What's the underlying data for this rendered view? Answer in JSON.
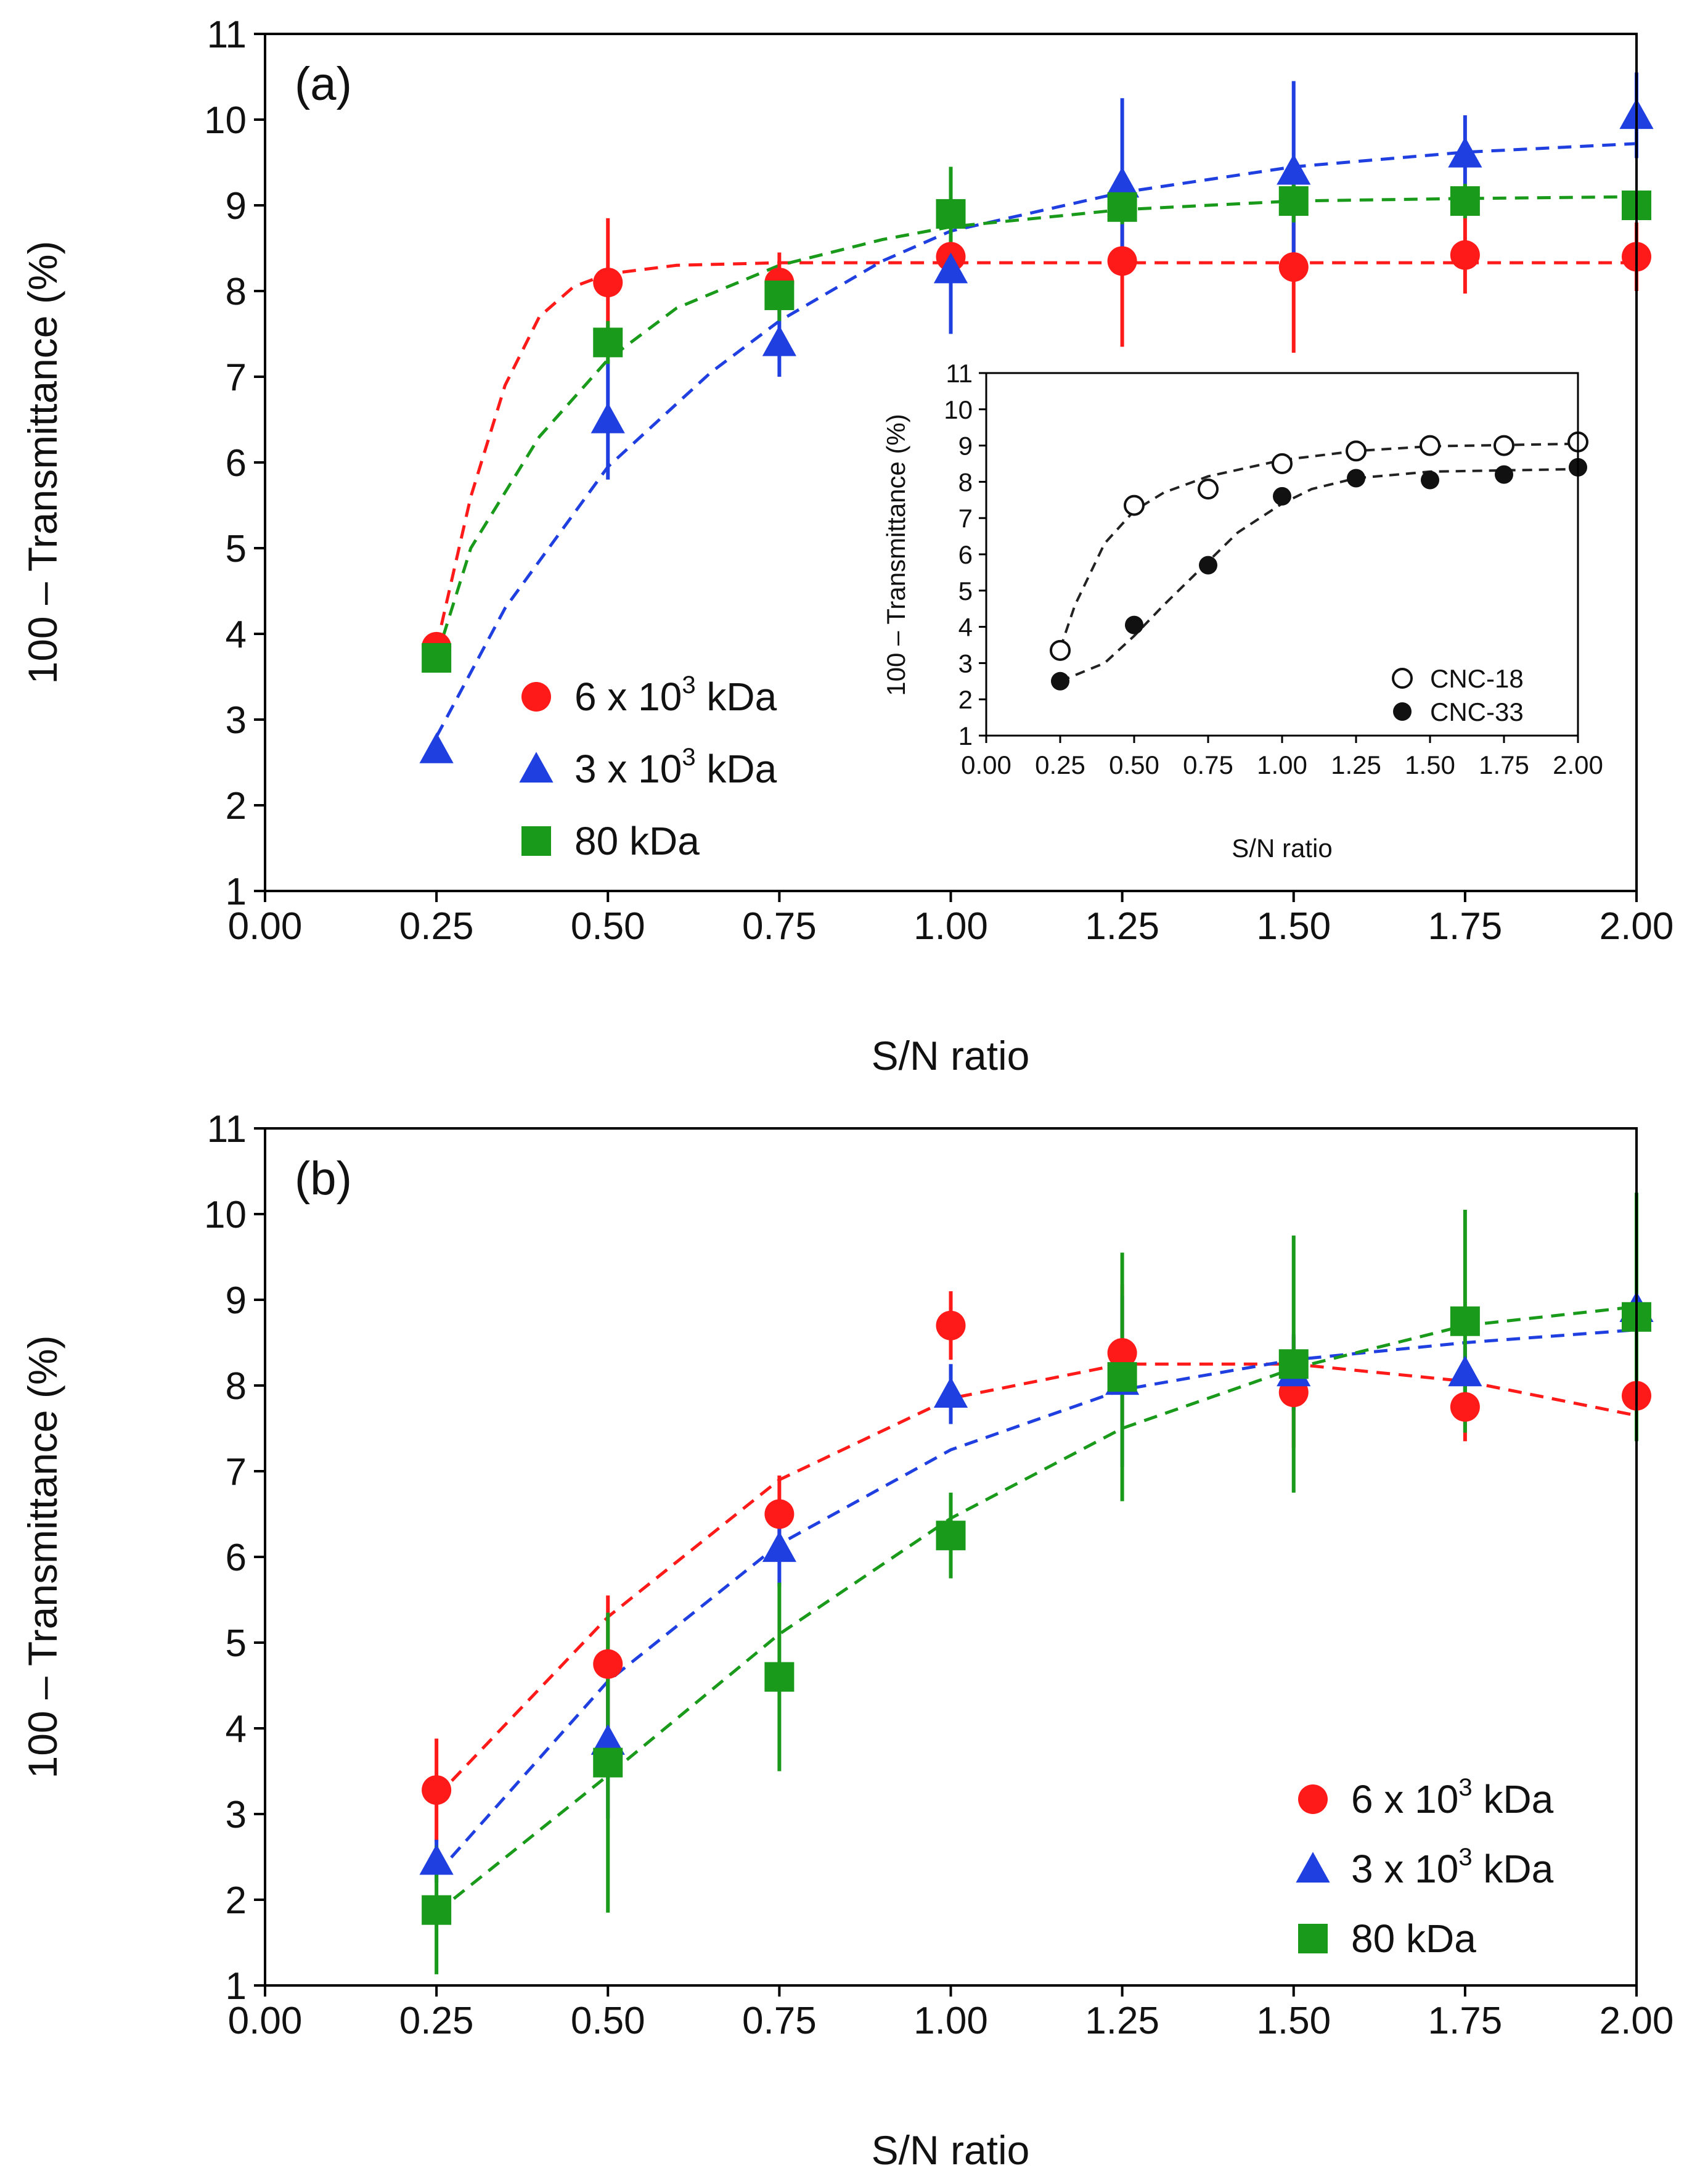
{
  "chart_data": [
    {
      "type": "scatter",
      "panel_label": "(a)",
      "xlabel": "S/N ratio",
      "ylabel": "100 – Transmittance (%)",
      "xlim": [
        0,
        2
      ],
      "ylim": [
        1,
        11
      ],
      "xticks": [
        "0.00",
        "0.25",
        "0.50",
        "0.75",
        "1.00",
        "1.25",
        "1.50",
        "1.75",
        "2.00"
      ],
      "yticks": [
        "1",
        "2",
        "3",
        "4",
        "5",
        "6",
        "7",
        "8",
        "9",
        "10",
        "11"
      ],
      "legend_position": "lower-left",
      "series": [
        {
          "name": "6 x 10^3 kDa",
          "label_base": "6 x 10",
          "label_sup": "3",
          "label_unit": " kDa",
          "marker": "circle",
          "color": "#ff1a1a",
          "x": [
            0.25,
            0.5,
            0.75,
            1.0,
            1.25,
            1.5,
            1.75,
            2.0
          ],
          "y": [
            3.85,
            8.1,
            8.1,
            8.4,
            8.35,
            8.28,
            8.42,
            8.4
          ],
          "err": [
            0.15,
            0.75,
            0.35,
            0.5,
            1.0,
            1.0,
            0.45,
            0.4
          ],
          "fit": [
            [
              0.25,
              3.85
            ],
            [
              0.3,
              5.6
            ],
            [
              0.35,
              6.9
            ],
            [
              0.4,
              7.7
            ],
            [
              0.45,
              8.05
            ],
            [
              0.5,
              8.2
            ],
            [
              0.6,
              8.3
            ],
            [
              0.75,
              8.33
            ],
            [
              1.0,
              8.33
            ],
            [
              1.5,
              8.33
            ],
            [
              2.0,
              8.33
            ]
          ]
        },
        {
          "name": "3 x 10^3 kDa",
          "label_base": "3 x 10",
          "label_sup": "3",
          "label_unit": " kDa",
          "marker": "triangle",
          "color": "#1f3fe0",
          "x": [
            0.25,
            0.5,
            0.75,
            1.0,
            1.25,
            1.5,
            1.75,
            2.0
          ],
          "y": [
            2.65,
            6.5,
            7.4,
            8.25,
            9.25,
            9.4,
            9.6,
            10.05
          ],
          "err": [
            0.1,
            0.7,
            0.4,
            0.75,
            1.0,
            1.05,
            0.45,
            0.5
          ],
          "fit": [
            [
              0.25,
              2.8
            ],
            [
              0.35,
              4.3
            ],
            [
              0.5,
              5.95
            ],
            [
              0.65,
              7.05
            ],
            [
              0.75,
              7.65
            ],
            [
              0.9,
              8.35
            ],
            [
              1.0,
              8.7
            ],
            [
              1.25,
              9.15
            ],
            [
              1.5,
              9.45
            ],
            [
              1.75,
              9.62
            ],
            [
              2.0,
              9.72
            ]
          ]
        },
        {
          "name": "80 kDa",
          "label_base": "80 kDa",
          "label_sup": "",
          "label_unit": "",
          "marker": "square",
          "color": "#1a9a1a",
          "x": [
            0.25,
            0.5,
            0.75,
            1.0,
            1.25,
            1.5,
            1.75,
            2.0
          ],
          "y": [
            3.72,
            7.4,
            7.95,
            8.9,
            8.98,
            9.05,
            9.05,
            9.0
          ],
          "err": [
            0.1,
            0.25,
            0.3,
            0.55,
            0.2,
            0.25,
            0.2,
            0.15
          ],
          "fit": [
            [
              0.25,
              3.72
            ],
            [
              0.3,
              5.0
            ],
            [
              0.4,
              6.3
            ],
            [
              0.5,
              7.2
            ],
            [
              0.6,
              7.8
            ],
            [
              0.75,
              8.3
            ],
            [
              0.9,
              8.6
            ],
            [
              1.0,
              8.75
            ],
            [
              1.25,
              8.95
            ],
            [
              1.5,
              9.05
            ],
            [
              1.75,
              9.08
            ],
            [
              2.0,
              9.1
            ]
          ]
        }
      ],
      "inset": {
        "xlabel": "S/N ratio",
        "ylabel": "100 – Transmittance (%)",
        "xlim": [
          0,
          2
        ],
        "ylim": [
          1,
          11
        ],
        "xticks": [
          "0.00",
          "0.25",
          "0.50",
          "0.75",
          "1.00",
          "1.25",
          "1.50",
          "1.75",
          "2.00"
        ],
        "yticks": [
          "1",
          "2",
          "3",
          "4",
          "5",
          "6",
          "7",
          "8",
          "9",
          "10",
          "11"
        ],
        "legend_position": "lower-right",
        "series": [
          {
            "name": "CNC-18",
            "marker": "open-circle",
            "x": [
              0.25,
              0.5,
              0.75,
              1.0,
              1.25,
              1.5,
              1.75,
              2.0
            ],
            "y": [
              3.35,
              7.35,
              7.8,
              8.5,
              8.85,
              9.0,
              9.0,
              9.1
            ],
            "fit": [
              [
                0.25,
                3.4
              ],
              [
                0.3,
                4.6
              ],
              [
                0.4,
                6.3
              ],
              [
                0.5,
                7.2
              ],
              [
                0.6,
                7.7
              ],
              [
                0.75,
                8.15
              ],
              [
                1.0,
                8.6
              ],
              [
                1.25,
                8.85
              ],
              [
                1.5,
                8.98
              ],
              [
                2.0,
                9.05
              ]
            ]
          },
          {
            "name": "CNC-33",
            "marker": "filled-circle",
            "x": [
              0.25,
              0.5,
              0.75,
              1.0,
              1.25,
              1.5,
              1.75,
              2.0
            ],
            "y": [
              2.5,
              4.05,
              5.7,
              7.6,
              8.1,
              8.05,
              8.2,
              8.4
            ],
            "fit": [
              [
                0.25,
                2.5
              ],
              [
                0.4,
                3.0
              ],
              [
                0.5,
                3.75
              ],
              [
                0.6,
                4.6
              ],
              [
                0.75,
                5.8
              ],
              [
                0.85,
                6.6
              ],
              [
                1.0,
                7.4
              ],
              [
                1.1,
                7.8
              ],
              [
                1.25,
                8.1
              ],
              [
                1.5,
                8.28
              ],
              [
                2.0,
                8.35
              ]
            ]
          }
        ]
      }
    },
    {
      "type": "scatter",
      "panel_label": "(b)",
      "xlabel": "S/N ratio",
      "ylabel": "100 – Transmittance (%)",
      "xlim": [
        0,
        2
      ],
      "ylim": [
        1,
        11
      ],
      "xticks": [
        "0.00",
        "0.25",
        "0.50",
        "0.75",
        "1.00",
        "1.25",
        "1.50",
        "1.75",
        "2.00"
      ],
      "yticks": [
        "1",
        "2",
        "3",
        "4",
        "5",
        "6",
        "7",
        "8",
        "9",
        "10",
        "11"
      ],
      "legend_position": "lower-right",
      "series": [
        {
          "name": "6 x 10^3 kDa",
          "label_base": "6 x 10",
          "label_sup": "3",
          "label_unit": " kDa",
          "marker": "circle",
          "color": "#ff1a1a",
          "x": [
            0.25,
            0.5,
            0.75,
            1.0,
            1.25,
            1.5,
            1.75,
            2.0
          ],
          "y": [
            3.28,
            4.75,
            6.5,
            8.7,
            8.38,
            7.92,
            7.75,
            7.88
          ],
          "err": [
            0.6,
            0.8,
            0.45,
            0.4,
            0.8,
            0.65,
            0.4,
            0.4
          ],
          "fit": [
            [
              0.25,
              3.2
            ],
            [
              0.5,
              5.3
            ],
            [
              0.75,
              6.9
            ],
            [
              1.0,
              7.85
            ],
            [
              1.25,
              8.25
            ],
            [
              1.5,
              8.25
            ],
            [
              1.75,
              8.05
            ],
            [
              2.0,
              7.65
            ]
          ]
        },
        {
          "name": "3 x 10^3 kDa",
          "label_base": "3 x 10",
          "label_sup": "3",
          "label_unit": " kDa",
          "marker": "triangle",
          "color": "#1f3fe0",
          "x": [
            0.25,
            0.5,
            0.75,
            1.0,
            1.25,
            1.5,
            1.75,
            2.0
          ],
          "y": [
            2.45,
            3.85,
            6.1,
            7.9,
            8.05,
            8.15,
            8.15,
            8.9
          ],
          "err": [
            0.25,
            0.9,
            0.45,
            0.35,
            1.0,
            0.45,
            0.3,
            0.2
          ],
          "fit": [
            [
              0.25,
              2.3
            ],
            [
              0.5,
              4.55
            ],
            [
              0.75,
              6.15
            ],
            [
              1.0,
              7.25
            ],
            [
              1.25,
              7.95
            ],
            [
              1.5,
              8.3
            ],
            [
              1.75,
              8.5
            ],
            [
              2.0,
              8.65
            ]
          ]
        },
        {
          "name": "80 kDa",
          "label_base": "80 kDa",
          "label_sup": "",
          "label_unit": "",
          "marker": "square",
          "color": "#1a9a1a",
          "x": [
            0.25,
            0.5,
            0.75,
            1.0,
            1.25,
            1.5,
            1.75,
            2.0
          ],
          "y": [
            1.88,
            3.6,
            4.6,
            6.25,
            8.1,
            8.25,
            8.75,
            8.8
          ],
          "err": [
            0.75,
            1.75,
            1.1,
            0.5,
            1.45,
            1.5,
            1.3,
            1.45
          ],
          "fit": [
            [
              0.25,
              1.85
            ],
            [
              0.5,
              3.45
            ],
            [
              0.75,
              5.1
            ],
            [
              1.0,
              6.45
            ],
            [
              1.25,
              7.5
            ],
            [
              1.5,
              8.2
            ],
            [
              1.75,
              8.7
            ],
            [
              2.0,
              8.92
            ]
          ]
        }
      ]
    }
  ]
}
